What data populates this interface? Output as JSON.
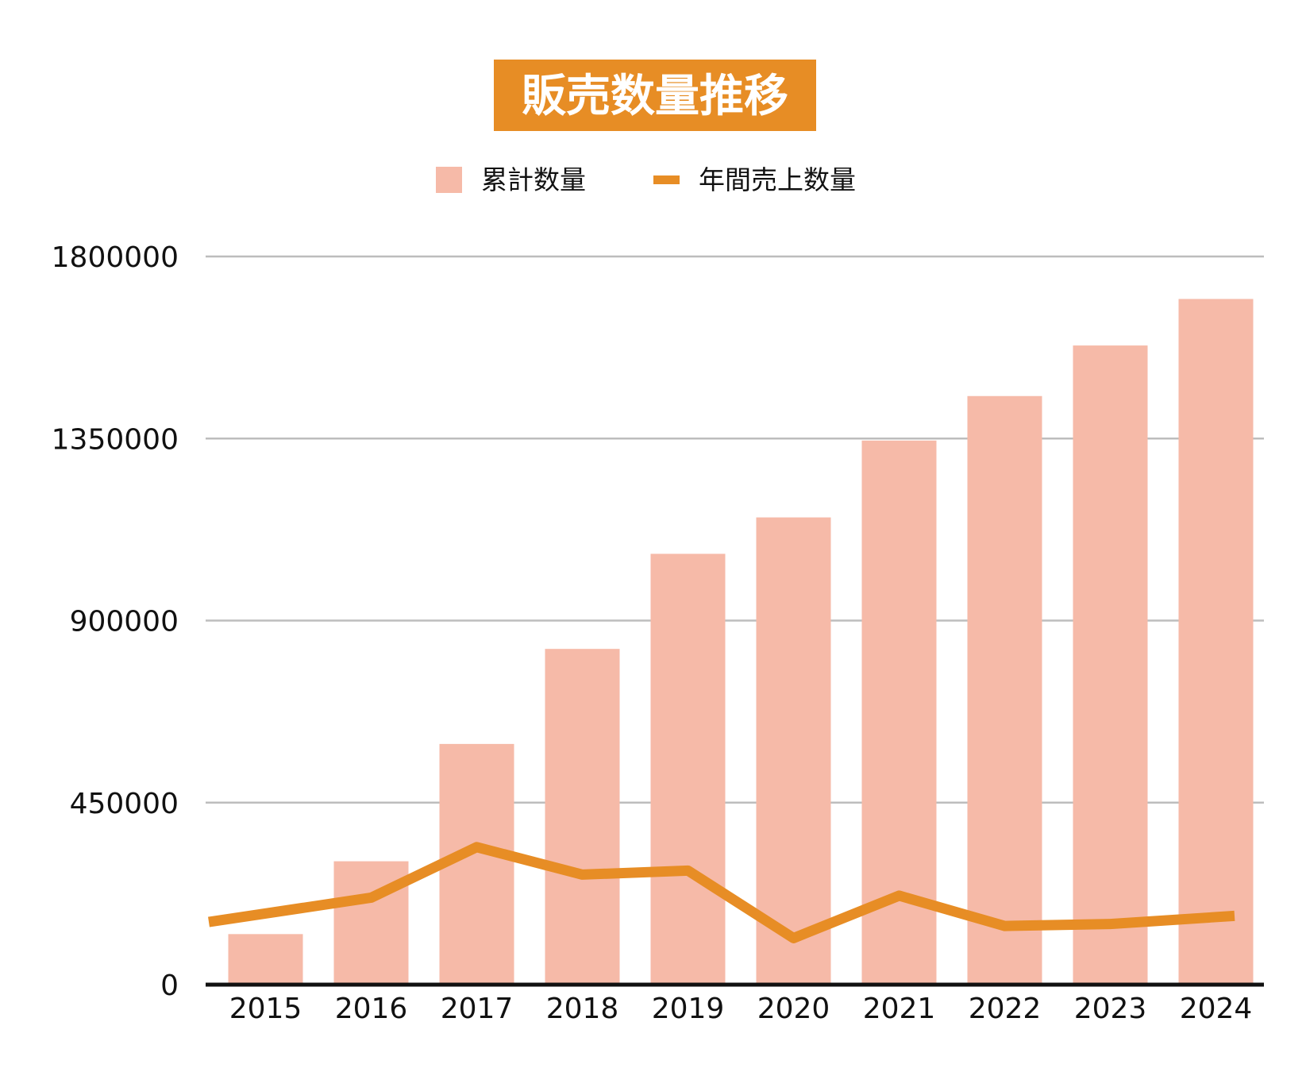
{
  "colors": {
    "title_bg": "#E78D25",
    "title_text": "#FFFFFF",
    "bar": "#F6BAA8",
    "line": "#E78D25",
    "grid": "#BDBDBD",
    "axis": "#111111",
    "text": "#111111"
  },
  "chart_data": {
    "type": "bar",
    "title": "販売数量推移",
    "categories": [
      "2015",
      "2016",
      "2017",
      "2018",
      "2019",
      "2020",
      "2021",
      "2022",
      "2023",
      "2024"
    ],
    "series": [
      {
        "name": "累計数量",
        "type": "bar",
        "values": [
          125000,
          305000,
          595000,
          830000,
          1065000,
          1155000,
          1345000,
          1455000,
          1580000,
          1695000
        ]
      },
      {
        "name": "年間売上数量",
        "type": "line",
        "values": [
          155000,
          215000,
          340000,
          272000,
          282000,
          115000,
          220000,
          145000,
          150000,
          170000
        ]
      }
    ],
    "yticks": [
      "0",
      "450000",
      "900000",
      "1350000",
      "1800000"
    ],
    "ylim": [
      0,
      1800000
    ],
    "grid": true,
    "legend_position": "top-center"
  }
}
